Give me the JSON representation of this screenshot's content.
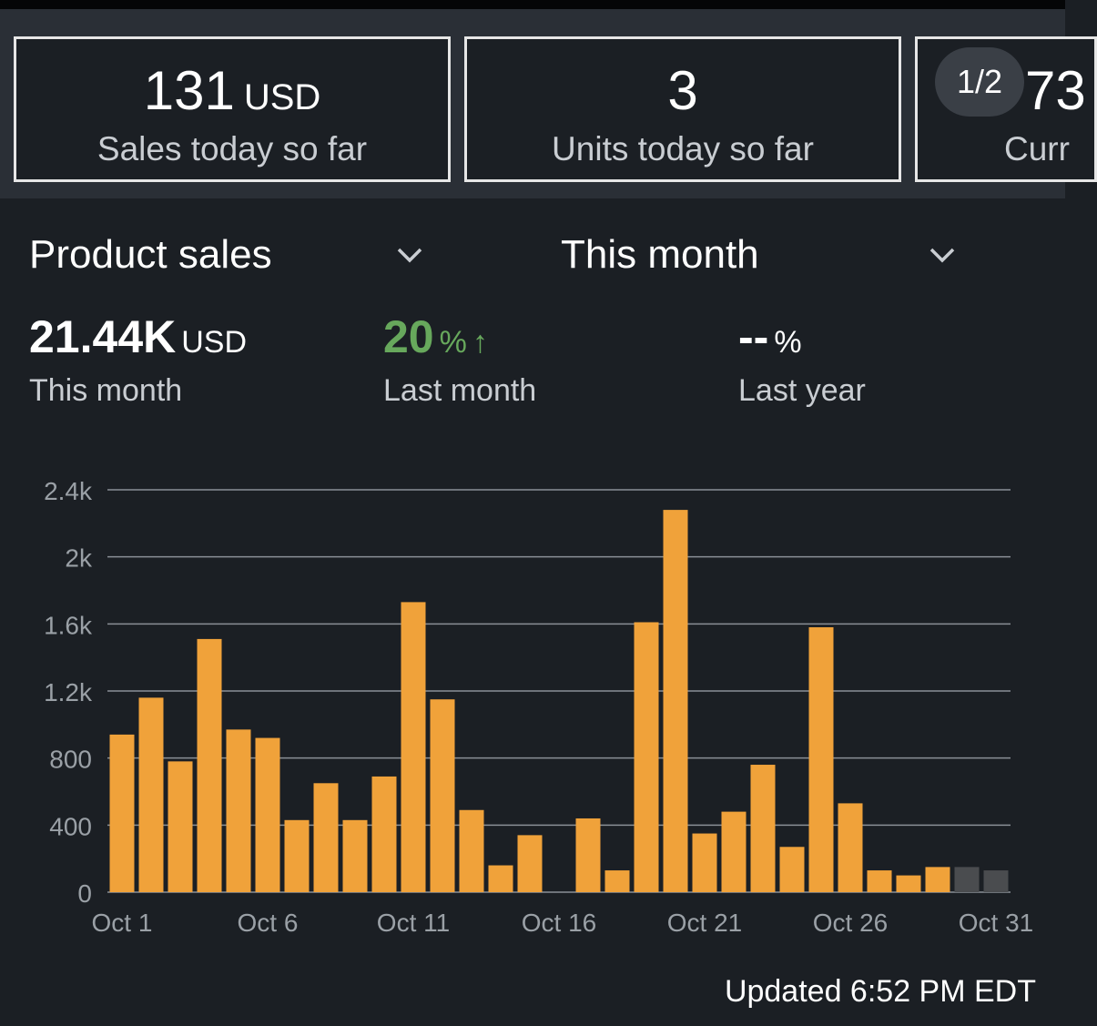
{
  "cards": [
    {
      "value": "131",
      "unit": "USD",
      "label": "Sales today so far"
    },
    {
      "value": "3",
      "unit": "",
      "label": "Units today so far"
    },
    {
      "value": "73",
      "unit": "",
      "label": "Curr"
    }
  ],
  "pager": "1/2",
  "selectors": {
    "metric": "Product sales",
    "period": "This month"
  },
  "stats": {
    "this_month": {
      "value": "21.44K",
      "unit": "USD",
      "label": "This month"
    },
    "last_month": {
      "value": "20",
      "unit": "%",
      "arrow": "↑",
      "label": "Last month",
      "color": "#67a85c"
    },
    "last_year": {
      "value": "--",
      "unit": "%",
      "label": "Last year"
    }
  },
  "updated": "Updated 6:52 PM EDT",
  "colors": {
    "bar": "#f0a23a",
    "bar_pending": "#4a4c4f",
    "grid": "#8a8f96"
  },
  "chart_data": {
    "type": "bar",
    "title": "",
    "xlabel": "",
    "ylabel": "",
    "ylim": [
      0,
      2400
    ],
    "yticks": [
      "0",
      "400",
      "800",
      "1.2k",
      "1.6k",
      "2k",
      "2.4k"
    ],
    "ytick_values": [
      0,
      400,
      800,
      1200,
      1600,
      2000,
      2400
    ],
    "xtick_labels": [
      "Oct 1",
      "Oct 6",
      "Oct 11",
      "Oct 16",
      "Oct 21",
      "Oct 26",
      "Oct 31"
    ],
    "categories": [
      "Oct 1",
      "Oct 2",
      "Oct 3",
      "Oct 4",
      "Oct 5",
      "Oct 6",
      "Oct 7",
      "Oct 8",
      "Oct 9",
      "Oct 10",
      "Oct 11",
      "Oct 12",
      "Oct 13",
      "Oct 14",
      "Oct 15",
      "Oct 16",
      "Oct 17",
      "Oct 18",
      "Oct 19",
      "Oct 20",
      "Oct 21",
      "Oct 22",
      "Oct 23",
      "Oct 24",
      "Oct 25",
      "Oct 26",
      "Oct 27",
      "Oct 28",
      "Oct 29",
      "Oct 30",
      "Oct 31"
    ],
    "values": [
      940,
      1160,
      780,
      1510,
      970,
      920,
      430,
      650,
      430,
      690,
      1730,
      1150,
      490,
      160,
      340,
      0,
      440,
      130,
      1610,
      2280,
      350,
      480,
      760,
      270,
      1580,
      530,
      130,
      100,
      150,
      150,
      130
    ],
    "pending_from_index": 29,
    "grid": true,
    "legend": "none"
  }
}
